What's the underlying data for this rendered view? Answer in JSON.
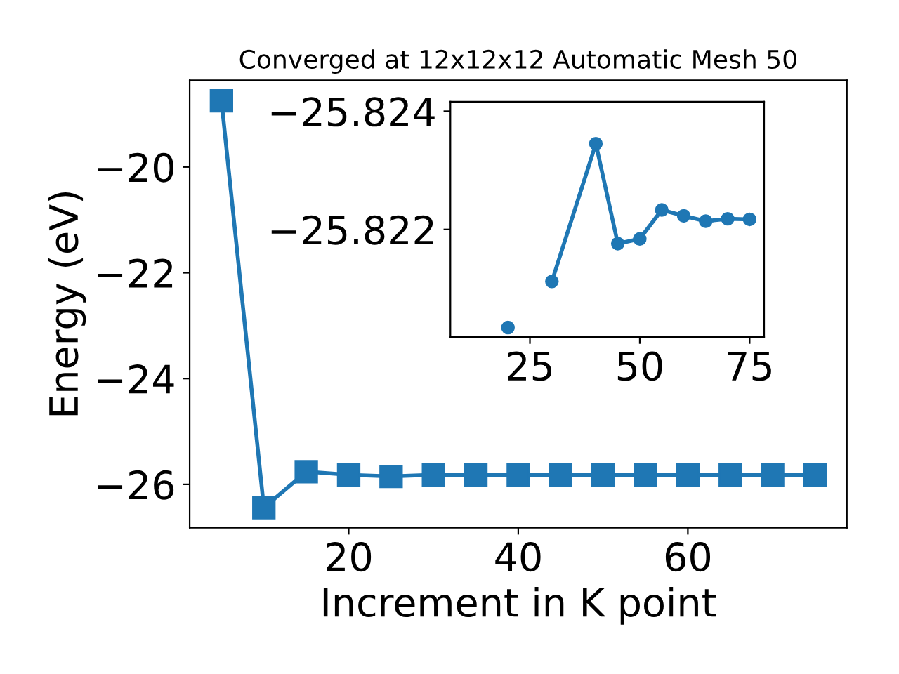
{
  "chart_data": [
    {
      "type": "line",
      "title": "Converged at 12x12x12 Automatic Mesh 50",
      "xlabel": "Increment in K point",
      "ylabel": "Energy (eV)",
      "x": [
        5,
        10,
        15,
        20,
        25,
        30,
        35,
        40,
        45,
        50,
        55,
        60,
        65,
        70,
        75
      ],
      "series": [
        {
          "color": "#1f77b4",
          "values": [
            -18.75,
            -26.44,
            -25.76,
            -25.82,
            -25.85,
            -25.82,
            -25.82,
            -25.82,
            -25.82,
            -25.82,
            -25.82,
            -25.82,
            -25.82,
            -25.82,
            -25.82
          ]
        }
      ],
      "xlim": [
        1.25,
        78.75
      ],
      "ylim": [
        -26.82,
        -18.36
      ],
      "xticks": [
        20,
        40,
        60
      ],
      "yticks": [
        {
          "value": -20,
          "label": "−20"
        },
        {
          "value": -22,
          "label": "−22"
        },
        {
          "value": -24,
          "label": "−24"
        },
        {
          "value": -26,
          "label": "−26"
        }
      ],
      "marker": "square",
      "line_style": "solid"
    },
    {
      "type": "line",
      "x": [
        20,
        25,
        30,
        40,
        45,
        50,
        55,
        60,
        65,
        70,
        75
      ],
      "series": [
        {
          "color": "#1f77b4",
          "values": [
            -25.82034,
            null,
            -25.82112,
            -25.82345,
            -25.82176,
            -25.82184,
            -25.82233,
            -25.82223,
            -25.82214,
            -25.82218,
            -25.82217
          ]
        }
      ],
      "xlim": [
        6.9,
        78.3
      ],
      "ylim": [
        -25.82018,
        -25.82416
      ],
      "xticks": [
        25,
        50,
        75
      ],
      "yticks": [
        {
          "value": -25.824,
          "label": "−25.824"
        },
        {
          "value": -25.822,
          "label": "−25.822"
        }
      ],
      "marker": "circle",
      "line_style": "solid"
    }
  ]
}
